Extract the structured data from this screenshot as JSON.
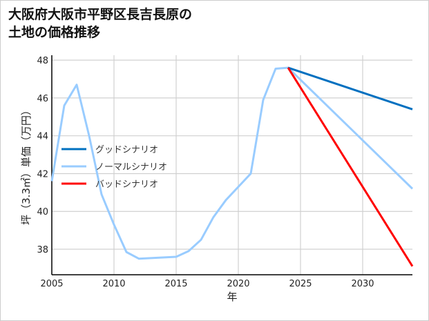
{
  "chart_data": {
    "type": "line",
    "title_lines": [
      "大阪府大阪市平野区長吉長原の",
      "土地の価格推移"
    ],
    "xlabel": "年",
    "ylabel": "坪（3.3㎡）単価（万円）",
    "xlim": [
      2005,
      2034
    ],
    "ylim": [
      36.65,
      48.26
    ],
    "xticks": [
      2005,
      2010,
      2015,
      2020,
      2025,
      2030
    ],
    "yticks": [
      38,
      40,
      42,
      44,
      46,
      48
    ],
    "grid": true,
    "legend_position": "center-left",
    "series": [
      {
        "name": "グッドシナリオ",
        "color": "#0070c0",
        "x": [
          2024,
          2034
        ],
        "y": [
          47.6,
          45.4
        ]
      },
      {
        "name": "ノーマルシナリオ",
        "color": "#99ccff",
        "x": [
          2005,
          2006,
          2007,
          2008,
          2009,
          2010,
          2011,
          2012,
          2015,
          2016,
          2017,
          2018,
          2019,
          2020,
          2021,
          2022,
          2023,
          2024,
          2034
        ],
        "y": [
          41.6,
          45.6,
          46.7,
          44.0,
          40.9,
          39.3,
          37.85,
          37.5,
          37.6,
          37.9,
          38.5,
          39.7,
          40.6,
          41.3,
          42.0,
          45.9,
          47.55,
          47.6,
          41.2
        ]
      },
      {
        "name": "バッドシナリオ",
        "color": "#ff0000",
        "x": [
          2024,
          2034
        ],
        "y": [
          47.6,
          37.1
        ]
      }
    ]
  }
}
